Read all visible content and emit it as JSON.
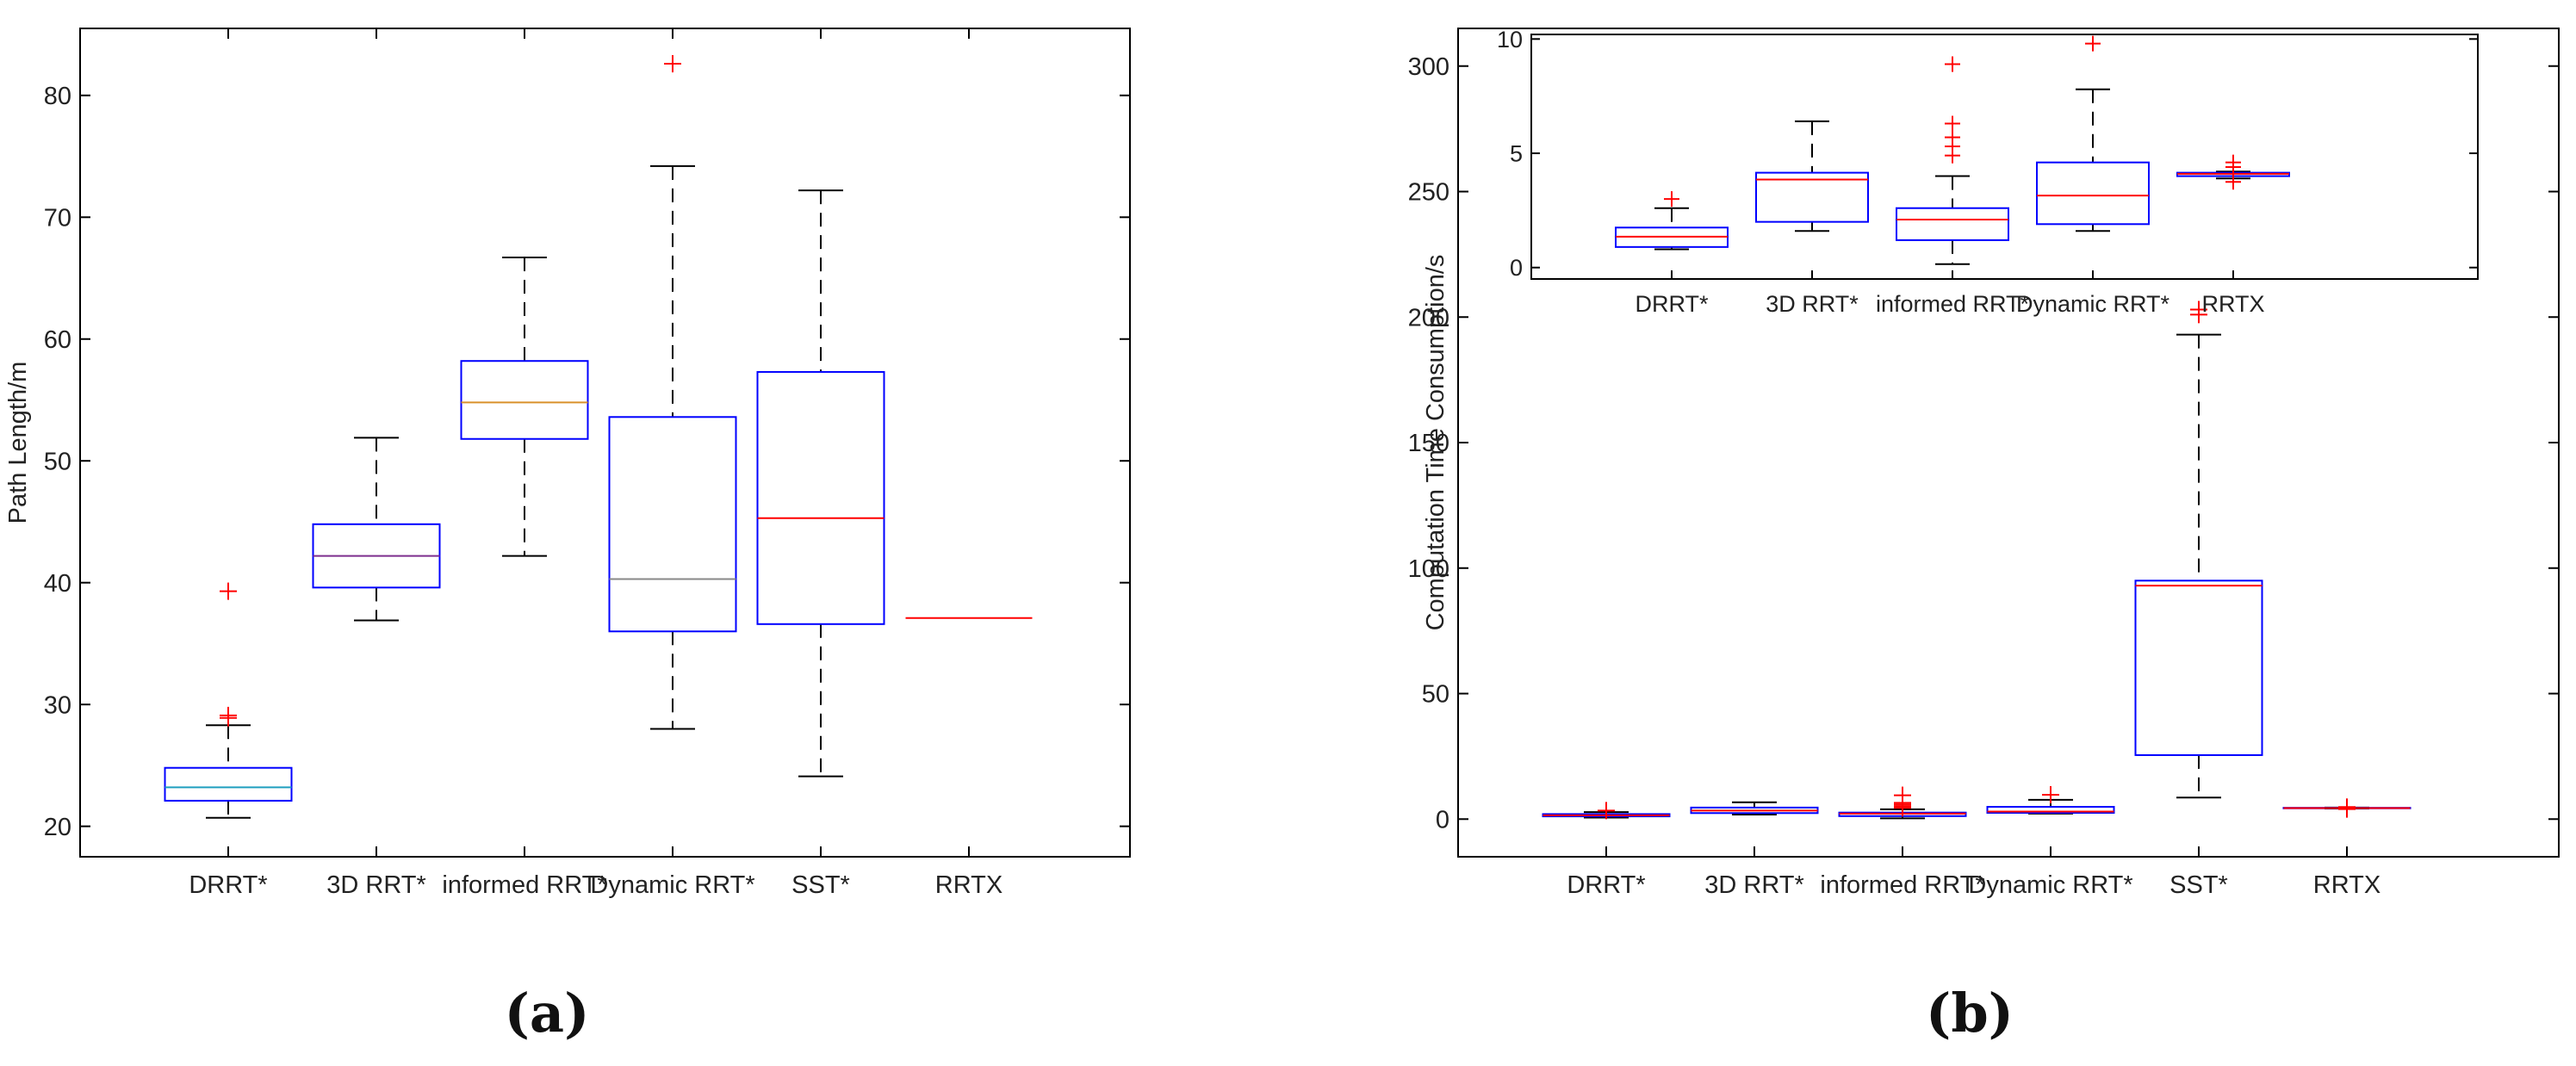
{
  "chart_data": [
    {
      "panel_label": "(a)",
      "type": "box",
      "ylabel": "Path Length/m",
      "ylim": [
        17.5,
        85.5
      ],
      "yticks": [
        20,
        30,
        40,
        50,
        60,
        70,
        80
      ],
      "categories": [
        "DRRT*",
        "3D RRT*",
        "informed RRT*",
        "Dynamic RRT*",
        "SST*",
        "RRTX"
      ],
      "boxes": [
        {
          "whisker_low": 20.7,
          "q1": 22.1,
          "median": 23.2,
          "q3": 24.8,
          "whisker_high": 28.3,
          "median_color": "#1f9fbf",
          "outliers": [
            29.1,
            28.9,
            39.3
          ]
        },
        {
          "whisker_low": 36.9,
          "q1": 39.6,
          "median": 42.2,
          "q3": 44.8,
          "whisker_high": 51.9,
          "median_color": "#7e2f8e",
          "outliers": []
        },
        {
          "whisker_low": 42.2,
          "q1": 51.8,
          "median": 54.8,
          "q3": 58.2,
          "whisker_high": 66.7,
          "median_color": "#d9912a",
          "outliers": []
        },
        {
          "whisker_low": 28.0,
          "q1": 36.0,
          "median": 40.3,
          "q3": 53.6,
          "whisker_high": 74.2,
          "median_color": "#888888",
          "outliers": [
            82.6
          ]
        },
        {
          "whisker_low": 24.1,
          "q1": 36.6,
          "median": 45.3,
          "q3": 57.3,
          "whisker_high": 72.2,
          "median_color": "#ff0000",
          "outliers": []
        },
        {
          "whisker_low": 37.1,
          "q1": 37.1,
          "median": 37.1,
          "q3": 37.1,
          "whisker_high": 37.1,
          "median_color": "#ff0000",
          "outliers": []
        }
      ]
    },
    {
      "panel_label": "(b)",
      "type": "box",
      "ylabel": "Computation Time Consumption/s",
      "ylim": [
        -15,
        315
      ],
      "yticks": [
        0,
        50,
        100,
        150,
        200,
        250,
        300
      ],
      "categories": [
        "DRRT*",
        "3D RRT*",
        "informed RRT*",
        "Dynamic RRT*",
        "SST*",
        "RRTX"
      ],
      "boxes": [
        {
          "whisker_low": 0.6,
          "q1": 1.1,
          "median": 1.5,
          "q3": 2.0,
          "whisker_high": 2.8,
          "median_color": "#ff0000",
          "outliers": [
            3.4
          ]
        },
        {
          "whisker_low": 1.8,
          "q1": 2.4,
          "median": 3.4,
          "q3": 4.6,
          "whisker_high": 6.7,
          "median_color": "#ff0000",
          "outliers": []
        },
        {
          "whisker_low": 0.3,
          "q1": 1.2,
          "median": 2.2,
          "q3": 2.6,
          "whisker_high": 3.9,
          "median_color": "#ff0000",
          "outliers": [
            4.5,
            5.1,
            5.8,
            6.5,
            9.5
          ]
        },
        {
          "whisker_low": 2.2,
          "q1": 2.5,
          "median": 3.0,
          "q3": 4.9,
          "whisker_high": 7.7,
          "median_color": "#ff0000",
          "outliers": [
            9.7
          ]
        },
        {
          "whisker_low": 8.6,
          "q1": 25.5,
          "median": 93.0,
          "q3": 95.0,
          "whisker_high": 193.0,
          "median_color": "#ff0000",
          "outliers": [
            201.0,
            203.0
          ]
        },
        {
          "whisker_low": 4.2,
          "q1": 4.3,
          "median": 4.4,
          "q3": 4.5,
          "whisker_high": 4.6,
          "median_color": "#ff0000",
          "outliers": [
            4.0,
            4.8
          ]
        }
      ],
      "inset": {
        "yticks": [
          0,
          5,
          10
        ],
        "ylim": [
          -0.5,
          10.2
        ],
        "categories": [
          "DRRT*",
          "3D RRT*",
          "informed RRT*",
          "Dynamic RRT*",
          "RRTX"
        ],
        "boxes": [
          {
            "whisker_low": 0.8,
            "q1": 0.9,
            "median": 1.35,
            "q3": 1.75,
            "whisker_high": 2.6,
            "outliers": [
              3.0
            ]
          },
          {
            "whisker_low": 1.6,
            "q1": 2.0,
            "median": 3.85,
            "q3": 4.15,
            "whisker_high": 6.4,
            "outliers": []
          },
          {
            "whisker_low": 0.15,
            "q1": 1.2,
            "median": 2.1,
            "q3": 2.6,
            "whisker_high": 4.0,
            "outliers": [
              4.9,
              5.3,
              5.7,
              6.3,
              8.9
            ]
          },
          {
            "whisker_low": 1.6,
            "q1": 1.9,
            "median": 3.15,
            "q3": 4.6,
            "whisker_high": 7.8,
            "outliers": [
              9.8
            ]
          },
          {
            "whisker_low": 3.9,
            "q1": 4.0,
            "median": 4.1,
            "q3": 4.15,
            "whisker_high": 4.2,
            "outliers": [
              3.75,
              4.4,
              4.6
            ]
          }
        ]
      }
    }
  ],
  "colors": {
    "box_edge": "#0000ff",
    "whisker": "#000000",
    "outlier": "#ff0000",
    "axis": "#000000"
  }
}
